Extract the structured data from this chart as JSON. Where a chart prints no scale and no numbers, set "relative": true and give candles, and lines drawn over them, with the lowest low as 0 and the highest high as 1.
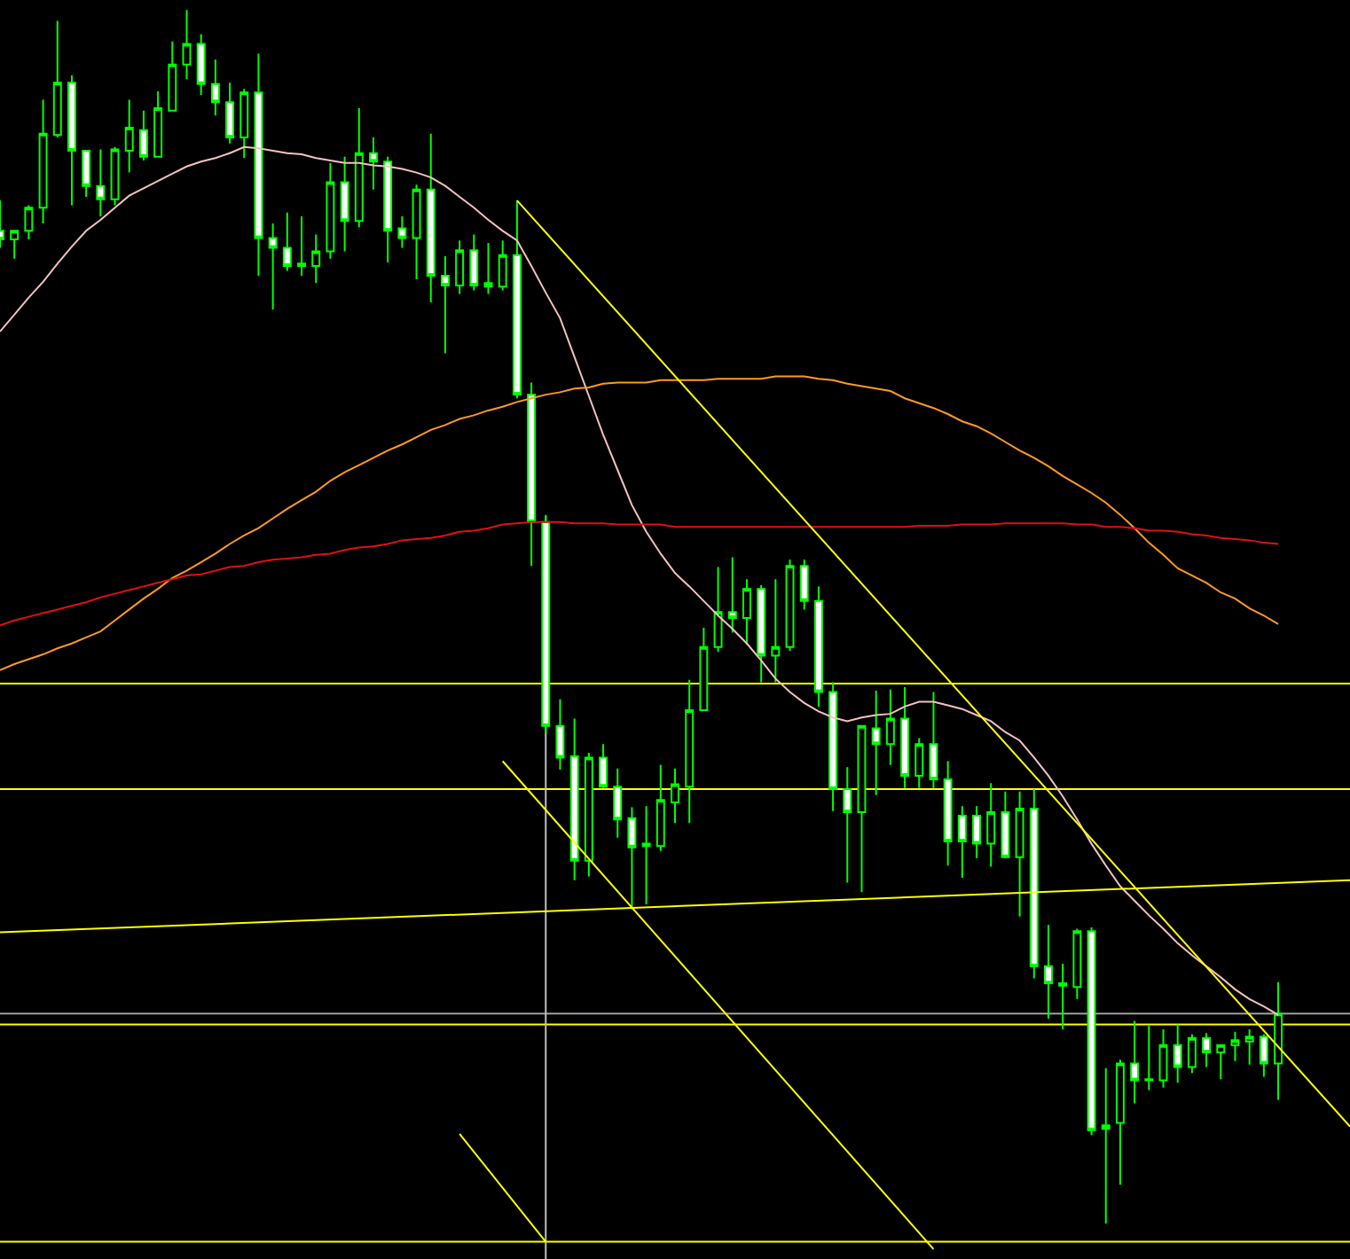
{
  "chart_data": {
    "type": "candlestick",
    "relative": true,
    "grid": false,
    "tick_labels": false,
    "color": "#00ff00",
    "categories": [
      null,
      null,
      null,
      null,
      null,
      null,
      null,
      null,
      null,
      null,
      null,
      null,
      null,
      null,
      null,
      null,
      null,
      null,
      null,
      null,
      null,
      null,
      null,
      null,
      null,
      null,
      null,
      null,
      null,
      null,
      null,
      null,
      null,
      null,
      null,
      null,
      null,
      null,
      null,
      null,
      null,
      null,
      null,
      null,
      null,
      null,
      null,
      null,
      null,
      null,
      null,
      null,
      null,
      null,
      null,
      null,
      null,
      null,
      null,
      null,
      null,
      null,
      null,
      null,
      null,
      null,
      null,
      null,
      null,
      null,
      null,
      null,
      null,
      null,
      null,
      null,
      null,
      null,
      null,
      null,
      null,
      null,
      null,
      null,
      null,
      null,
      null,
      null,
      null,
      null,
      null,
      null,
      null,
      null,
      null
    ],
    "ohlc": [
      [
        0.818,
        0.843,
        0.804,
        0.811
      ],
      [
        0.811,
        0.818,
        0.795,
        0.818
      ],
      [
        0.818,
        0.839,
        0.811,
        0.837
      ],
      [
        0.837,
        0.926,
        0.824,
        0.898
      ],
      [
        0.897,
        0.991,
        0.895,
        0.94
      ],
      [
        0.94,
        0.946,
        0.839,
        0.884
      ],
      [
        0.884,
        0.884,
        0.846,
        0.855
      ],
      [
        0.855,
        0.885,
        0.83,
        0.844
      ],
      [
        0.844,
        0.887,
        0.839,
        0.885
      ],
      [
        0.884,
        0.926,
        0.866,
        0.903
      ],
      [
        0.901,
        0.917,
        0.876,
        0.879
      ],
      [
        0.879,
        0.933,
        0.879,
        0.919
      ],
      [
        0.917,
        0.974,
        0.917,
        0.955
      ],
      [
        0.955,
        1.0,
        0.943,
        0.972
      ],
      [
        0.972,
        0.98,
        0.93,
        0.939
      ],
      [
        0.939,
        0.959,
        0.913,
        0.924
      ],
      [
        0.924,
        0.94,
        0.89,
        0.895
      ],
      [
        0.895,
        0.935,
        0.878,
        0.932
      ],
      [
        0.932,
        0.964,
        0.781,
        0.812
      ],
      [
        0.812,
        0.824,
        0.753,
        0.804
      ],
      [
        0.804,
        0.833,
        0.785,
        0.789
      ],
      [
        0.789,
        0.83,
        0.781,
        0.791
      ],
      [
        0.789,
        0.815,
        0.775,
        0.801
      ],
      [
        0.801,
        0.874,
        0.795,
        0.858
      ],
      [
        0.858,
        0.879,
        0.801,
        0.826
      ],
      [
        0.826,
        0.919,
        0.821,
        0.882
      ],
      [
        0.882,
        0.895,
        0.852,
        0.875
      ],
      [
        0.875,
        0.879,
        0.792,
        0.818
      ],
      [
        0.82,
        0.83,
        0.804,
        0.812
      ],
      [
        0.812,
        0.856,
        0.778,
        0.852
      ],
      [
        0.852,
        0.898,
        0.759,
        0.781
      ],
      [
        0.781,
        0.797,
        0.717,
        0.773
      ],
      [
        0.773,
        0.81,
        0.766,
        0.802
      ],
      [
        0.802,
        0.815,
        0.769,
        0.773
      ],
      [
        0.775,
        0.808,
        0.766,
        0.772
      ],
      [
        0.772,
        0.81,
        0.769,
        0.798
      ],
      [
        0.798,
        0.843,
        0.68,
        0.683
      ],
      [
        0.683,
        0.693,
        0.542,
        0.578
      ],
      [
        0.578,
        0.584,
        0.404,
        0.41
      ],
      [
        0.41,
        0.432,
        0.374,
        0.384
      ],
      [
        0.385,
        0.416,
        0.283,
        0.299
      ],
      [
        0.299,
        0.388,
        0.286,
        0.384
      ],
      [
        0.384,
        0.395,
        0.359,
        0.36
      ],
      [
        0.36,
        0.375,
        0.318,
        0.333
      ],
      [
        0.334,
        0.343,
        0.259,
        0.31
      ],
      [
        0.313,
        0.344,
        0.263,
        0.311
      ],
      [
        0.311,
        0.378,
        0.307,
        0.349
      ],
      [
        0.347,
        0.375,
        0.33,
        0.362
      ],
      [
        0.36,
        0.448,
        0.33,
        0.423
      ],
      [
        0.423,
        0.491,
        0.423,
        0.475
      ],
      [
        0.475,
        0.541,
        0.471,
        0.504
      ],
      [
        0.504,
        0.549,
        0.487,
        0.499
      ],
      [
        0.499,
        0.531,
        0.477,
        0.523
      ],
      [
        0.523,
        0.526,
        0.446,
        0.468
      ],
      [
        0.468,
        0.531,
        0.446,
        0.475
      ],
      [
        0.475,
        0.547,
        0.472,
        0.542
      ],
      [
        0.542,
        0.547,
        0.506,
        0.513
      ],
      [
        0.513,
        0.525,
        0.426,
        0.438
      ],
      [
        0.438,
        0.446,
        0.34,
        0.358
      ],
      [
        0.358,
        0.376,
        0.281,
        0.339
      ],
      [
        0.339,
        0.41,
        0.273,
        0.41
      ],
      [
        0.408,
        0.439,
        0.353,
        0.395
      ],
      [
        0.395,
        0.44,
        0.378,
        0.416
      ],
      [
        0.416,
        0.442,
        0.359,
        0.369
      ],
      [
        0.369,
        0.4,
        0.359,
        0.395
      ],
      [
        0.395,
        0.438,
        0.359,
        0.366
      ],
      [
        0.366,
        0.381,
        0.295,
        0.315
      ],
      [
        0.336,
        0.344,
        0.285,
        0.315
      ],
      [
        0.336,
        0.344,
        0.301,
        0.313
      ],
      [
        0.313,
        0.363,
        0.294,
        0.339
      ],
      [
        0.339,
        0.356,
        0.301,
        0.302
      ],
      [
        0.302,
        0.356,
        0.253,
        0.342
      ],
      [
        0.342,
        0.358,
        0.202,
        0.212
      ],
      [
        0.212,
        0.246,
        0.169,
        0.198
      ],
      [
        0.198,
        0.214,
        0.16,
        0.196
      ],
      [
        0.195,
        0.243,
        0.185,
        0.241
      ],
      [
        0.241,
        0.244,
        0.073,
        0.077
      ],
      [
        0.078,
        0.128,
        0.0,
        0.081
      ],
      [
        0.083,
        0.135,
        0.032,
        0.132
      ],
      [
        0.132,
        0.167,
        0.099,
        0.118
      ],
      [
        0.119,
        0.163,
        0.11,
        0.118
      ],
      [
        0.118,
        0.16,
        0.112,
        0.147
      ],
      [
        0.147,
        0.164,
        0.116,
        0.129
      ],
      [
        0.129,
        0.156,
        0.124,
        0.153
      ],
      [
        0.153,
        0.157,
        0.129,
        0.141
      ],
      [
        0.141,
        0.147,
        0.119,
        0.147
      ],
      [
        0.147,
        0.158,
        0.134,
        0.151
      ],
      [
        0.15,
        0.16,
        0.131,
        0.154
      ],
      [
        0.154,
        0.156,
        0.121,
        0.132
      ],
      [
        0.132,
        0.199,
        0.102,
        0.173
      ],
      null,
      null,
      null,
      null,
      null
    ],
    "series": [
      {
        "type": "line",
        "color": "#f4c2c2",
        "values": [
          0.735,
          0.749,
          0.763,
          0.776,
          0.791,
          0.805,
          0.818,
          0.827,
          0.837,
          0.847,
          0.853,
          0.859,
          0.865,
          0.871,
          0.875,
          0.878,
          0.882,
          0.887,
          0.886,
          0.884,
          0.882,
          0.881,
          0.878,
          0.876,
          0.874,
          0.874,
          0.872,
          0.871,
          0.869,
          0.866,
          0.862,
          0.855,
          0.846,
          0.837,
          0.827,
          0.818,
          0.81,
          0.789,
          0.767,
          0.746,
          0.714,
          0.682,
          0.65,
          0.621,
          0.592,
          0.57,
          0.552,
          0.536,
          0.525,
          0.513,
          0.501,
          0.49,
          0.478,
          0.464,
          0.449,
          0.438,
          0.429,
          0.422,
          0.417,
          0.414,
          0.417,
          0.419,
          0.42,
          0.426,
          0.43,
          0.43,
          0.427,
          0.424,
          0.419,
          0.414,
          0.405,
          0.398,
          0.384,
          0.369,
          0.352,
          0.333,
          0.313,
          0.295,
          0.278,
          0.266,
          0.254,
          0.243,
          0.231,
          0.221,
          0.212,
          0.203,
          0.193,
          0.185,
          0.179,
          0.172,
          null,
          null,
          null,
          null,
          null
        ]
      },
      {
        "type": "line",
        "color": "#ff9a1f",
        "values": [
          0.456,
          0.461,
          0.465,
          0.469,
          0.474,
          0.478,
          0.483,
          0.488,
          0.497,
          0.506,
          0.515,
          0.523,
          0.532,
          0.538,
          0.545,
          0.552,
          0.56,
          0.567,
          0.573,
          0.581,
          0.589,
          0.596,
          0.603,
          0.612,
          0.619,
          0.625,
          0.631,
          0.637,
          0.642,
          0.648,
          0.654,
          0.658,
          0.663,
          0.666,
          0.67,
          0.673,
          0.677,
          0.68,
          0.683,
          0.685,
          0.688,
          0.689,
          0.692,
          0.693,
          0.693,
          0.693,
          0.695,
          0.695,
          0.695,
          0.695,
          0.696,
          0.696,
          0.696,
          0.696,
          0.698,
          0.698,
          0.698,
          0.696,
          0.695,
          0.692,
          0.69,
          0.688,
          0.686,
          0.68,
          0.676,
          0.672,
          0.667,
          0.661,
          0.657,
          0.651,
          0.644,
          0.637,
          0.631,
          0.624,
          0.616,
          0.609,
          0.602,
          0.594,
          0.584,
          0.573,
          0.561,
          0.551,
          0.54,
          0.534,
          0.528,
          0.52,
          0.515,
          0.507,
          0.501,
          0.494,
          null,
          null,
          null,
          null,
          null
        ]
      },
      {
        "type": "line",
        "color": "#e01010",
        "values": [
          0.493,
          0.497,
          0.5,
          0.503,
          0.506,
          0.509,
          0.512,
          0.516,
          0.519,
          0.522,
          0.525,
          0.528,
          0.531,
          0.534,
          0.535,
          0.538,
          0.541,
          0.542,
          0.545,
          0.547,
          0.548,
          0.549,
          0.551,
          0.552,
          0.555,
          0.557,
          0.558,
          0.56,
          0.563,
          0.564,
          0.565,
          0.567,
          0.57,
          0.571,
          0.573,
          0.576,
          0.577,
          0.578,
          0.578,
          0.578,
          0.577,
          0.577,
          0.577,
          0.576,
          0.576,
          0.576,
          0.576,
          0.574,
          0.574,
          0.574,
          0.574,
          0.574,
          0.574,
          0.574,
          0.574,
          0.574,
          0.574,
          0.574,
          0.574,
          0.574,
          0.574,
          0.574,
          0.574,
          0.574,
          0.575,
          0.575,
          0.575,
          0.576,
          0.576,
          0.576,
          0.577,
          0.577,
          0.577,
          0.577,
          0.577,
          0.576,
          0.576,
          0.574,
          0.574,
          0.573,
          0.571,
          0.571,
          0.57,
          0.568,
          0.567,
          0.565,
          0.564,
          0.563,
          0.561,
          0.56,
          null,
          null,
          null,
          null,
          null
        ]
      },
      {
        "type": "line",
        "color": "#ffff00",
        "values": [
          null,
          null,
          null,
          null,
          null,
          null,
          null,
          null,
          null,
          null,
          null,
          null,
          null,
          null,
          null,
          null,
          null,
          null,
          null,
          null,
          null,
          null,
          null,
          null,
          null,
          null,
          null,
          null,
          null,
          null,
          null,
          null,
          null,
          null,
          null,
          null,
          0.843,
          null,
          null,
          null,
          null,
          null,
          null,
          null,
          null,
          null,
          null,
          null,
          null,
          null,
          null,
          null,
          null,
          null,
          null,
          null,
          null,
          null,
          null,
          null,
          null,
          null,
          null,
          null,
          null,
          null,
          null,
          null,
          null,
          null,
          null,
          null,
          null,
          null,
          null,
          null,
          null,
          null,
          null,
          null,
          null,
          null,
          null,
          null,
          null,
          null,
          null,
          null,
          null,
          null,
          null,
          null,
          null,
          null,
          0.08
        ]
      },
      {
        "type": "line",
        "color": "#ffff00",
        "values": [
          null,
          null,
          null,
          null,
          null,
          null,
          null,
          null,
          null,
          null,
          null,
          null,
          null,
          null,
          null,
          null,
          null,
          null,
          null,
          null,
          null,
          null,
          null,
          null,
          null,
          null,
          null,
          null,
          null,
          null,
          null,
          null,
          null,
          null,
          null,
          0.381,
          null,
          null,
          null,
          null,
          null,
          null,
          null,
          null,
          null,
          null,
          null,
          null,
          null,
          null,
          null,
          null,
          null,
          null,
          null,
          null,
          null,
          null,
          null,
          null,
          null,
          null,
          null,
          null,
          null,
          -0.021,
          null,
          null,
          null,
          null,
          null,
          null,
          null,
          null,
          null,
          null,
          null,
          null,
          null,
          null,
          null,
          null,
          null,
          null,
          null,
          null,
          null,
          null,
          null,
          null,
          null,
          null,
          null,
          null,
          null
        ]
      },
      {
        "type": "line",
        "color": "#ffff00",
        "values": [
          null,
          null,
          null,
          null,
          null,
          null,
          null,
          null,
          null,
          null,
          null,
          null,
          null,
          null,
          null,
          null,
          null,
          null,
          null,
          null,
          null,
          null,
          null,
          null,
          null,
          null,
          null,
          null,
          null,
          null,
          null,
          null,
          0.074,
          null,
          null,
          null,
          null,
          null,
          -0.015,
          null,
          null,
          null,
          null,
          null,
          null,
          null,
          null,
          null,
          null,
          null,
          null,
          null,
          null,
          null,
          null,
          null,
          null,
          null,
          null,
          null,
          null,
          null,
          null,
          null,
          null,
          null,
          null,
          null,
          null,
          null,
          null,
          null,
          null,
          null,
          null,
          null,
          null,
          null,
          null,
          null,
          null,
          null,
          null,
          null,
          null,
          null,
          null,
          null,
          null,
          null,
          null,
          null,
          null,
          null,
          null
        ]
      },
      {
        "type": "line",
        "color": "#ffff00",
        "values": [
          0.24,
          null,
          null,
          null,
          null,
          null,
          null,
          null,
          null,
          null,
          null,
          null,
          null,
          null,
          null,
          null,
          null,
          null,
          null,
          null,
          null,
          null,
          null,
          null,
          null,
          null,
          null,
          null,
          null,
          null,
          null,
          null,
          null,
          null,
          null,
          null,
          null,
          null,
          null,
          null,
          null,
          null,
          null,
          null,
          null,
          null,
          null,
          null,
          null,
          null,
          null,
          null,
          null,
          null,
          null,
          null,
          null,
          null,
          null,
          null,
          null,
          null,
          null,
          null,
          null,
          null,
          null,
          null,
          null,
          null,
          null,
          null,
          null,
          null,
          null,
          null,
          null,
          null,
          null,
          null,
          null,
          null,
          null,
          null,
          null,
          null,
          null,
          null,
          null,
          null,
          null,
          null,
          null,
          null,
          0.283
        ]
      }
    ],
    "ref_lines": [
      {
        "axis": "y",
        "value": 0.445,
        "color": "#ffff00"
      },
      {
        "axis": "y",
        "value": 0.358,
        "color": "#ffff00"
      },
      {
        "axis": "y",
        "value": 0.173,
        "color": "#a0a0a0"
      },
      {
        "axis": "y",
        "value": 0.164,
        "color": "#ffff00"
      },
      {
        "axis": "y",
        "value": -0.015,
        "color": "#ffff00"
      }
    ]
  }
}
